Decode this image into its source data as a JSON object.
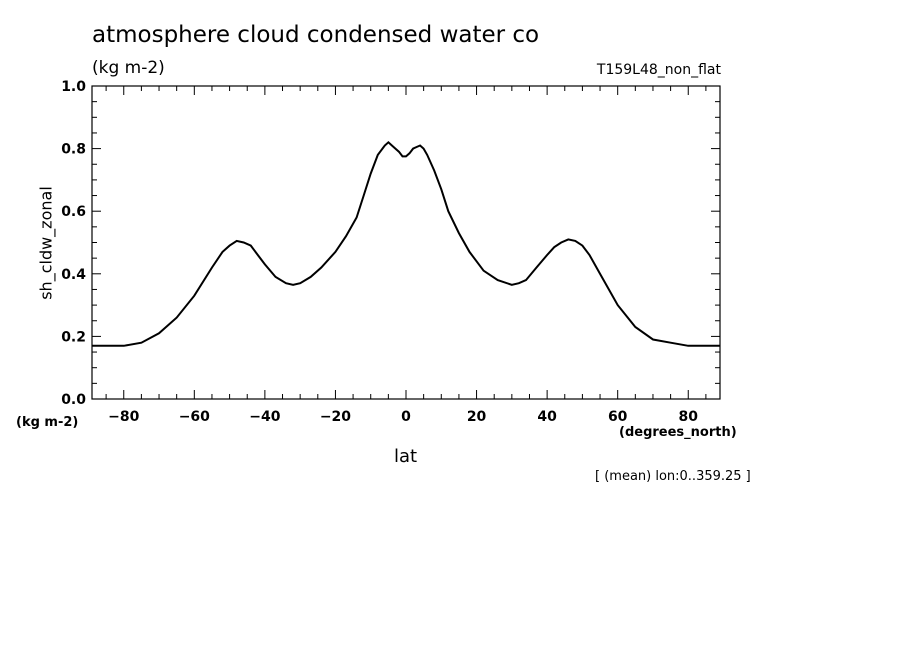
{
  "header": {
    "title": "atmosphere cloud condensed water co",
    "units": "(kg m-2)",
    "run": "T159L48_non_flat"
  },
  "footer": {
    "y_units": "(kg m-2)",
    "x_units": "(degrees_north)",
    "annotation": "[ (mean) lon:0..359.25 ]"
  },
  "chart_data": {
    "type": "line",
    "title": "atmosphere cloud condensed water co",
    "xlabel": "lat",
    "ylabel": "sh_cldw_zonal",
    "xlim": [
      -89,
      89
    ],
    "ylim": [
      0.0,
      1.0
    ],
    "grid": false,
    "xticks": [
      -80,
      -60,
      -40,
      -20,
      0,
      20,
      40,
      60,
      80
    ],
    "xtick_labels": [
      "-80",
      "-60",
      "-40",
      "-20",
      "0",
      "20",
      "40",
      "60",
      "80"
    ],
    "yticks": [
      0.0,
      0.2,
      0.4,
      0.6,
      0.8,
      1.0
    ],
    "ytick_labels": [
      "0.0",
      "0.2",
      "0.4",
      "0.6",
      "0.8",
      "1.0"
    ],
    "series": [
      {
        "color": "#000000",
        "x": [
          -89,
          -85,
          -80,
          -75,
          -70,
          -65,
          -60,
          -55,
          -52,
          -50,
          -48,
          -46,
          -44,
          -42,
          -40,
          -37,
          -34,
          -32,
          -30,
          -27,
          -24,
          -20,
          -17,
          -14,
          -12,
          -10,
          -8,
          -6,
          -5,
          -4,
          -3,
          -2,
          -1,
          0,
          1,
          2,
          3,
          4,
          5,
          6,
          8,
          10,
          12,
          15,
          18,
          22,
          26,
          30,
          32,
          34,
          37,
          40,
          42,
          44,
          46,
          48,
          50,
          52,
          55,
          60,
          65,
          70,
          75,
          80,
          85,
          89
        ],
        "y": [
          0.17,
          0.17,
          0.17,
          0.18,
          0.21,
          0.26,
          0.33,
          0.42,
          0.47,
          0.49,
          0.505,
          0.5,
          0.49,
          0.46,
          0.43,
          0.39,
          0.37,
          0.365,
          0.37,
          0.39,
          0.42,
          0.47,
          0.52,
          0.58,
          0.65,
          0.72,
          0.78,
          0.81,
          0.82,
          0.81,
          0.8,
          0.79,
          0.775,
          0.775,
          0.785,
          0.8,
          0.805,
          0.81,
          0.8,
          0.78,
          0.73,
          0.67,
          0.6,
          0.53,
          0.47,
          0.41,
          0.38,
          0.365,
          0.37,
          0.38,
          0.42,
          0.46,
          0.485,
          0.5,
          0.51,
          0.505,
          0.49,
          0.46,
          0.4,
          0.3,
          0.23,
          0.19,
          0.18,
          0.17,
          0.17,
          0.17
        ]
      }
    ]
  }
}
